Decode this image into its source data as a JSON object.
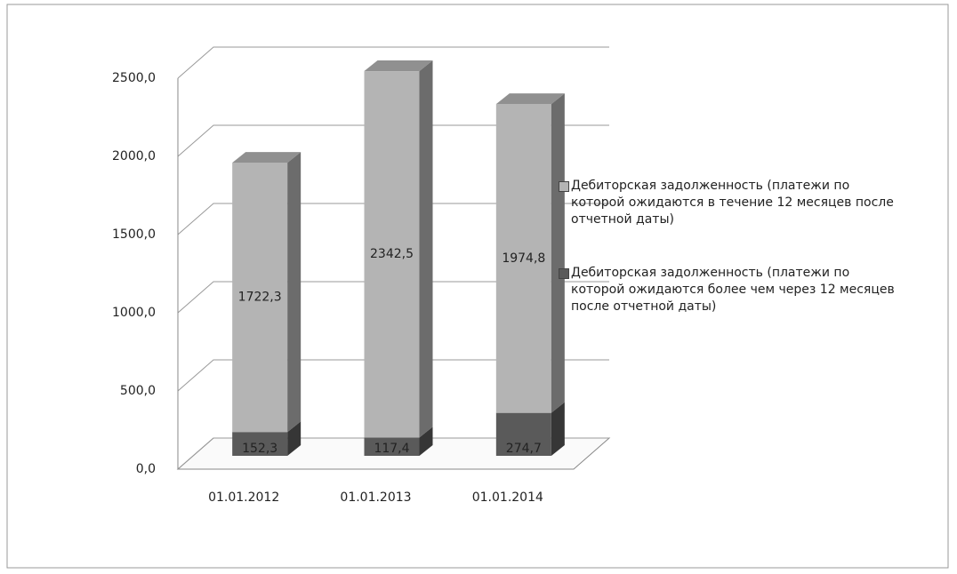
{
  "chart_data": {
    "type": "bar3d_stacked",
    "categories": [
      "01.01.2012",
      "01.01.2013",
      "01.01.2014"
    ],
    "series": [
      {
        "name": "Дебиторская задолженность (платежи по которой ожидаются более чем через 12 месяцев после отчетной даты)",
        "color": "#5a5a5a",
        "values": [
          152.3,
          117.4,
          274.7
        ],
        "value_labels": [
          "152,3",
          "117,4",
          "274,7"
        ]
      },
      {
        "name": "Дебиторская задолженность (платежи по которой ожидаются в течение 12 месяцев после отчетной даты)",
        "color": "#b4b4b4",
        "values": [
          1722.3,
          2342.5,
          1974.8
        ],
        "value_labels": [
          "1722,3",
          "2342,5",
          "1974,8"
        ]
      }
    ],
    "ylim": [
      0,
      2500
    ],
    "yticks": [
      {
        "value": 0,
        "label": "0,0"
      },
      {
        "value": 500,
        "label": "500,0"
      },
      {
        "value": 1000,
        "label": "1000,0"
      },
      {
        "value": 1500,
        "label": "1500,0"
      },
      {
        "value": 2000,
        "label": "2000,0"
      },
      {
        "value": 2500,
        "label": "2500,0"
      }
    ],
    "grid": true
  }
}
